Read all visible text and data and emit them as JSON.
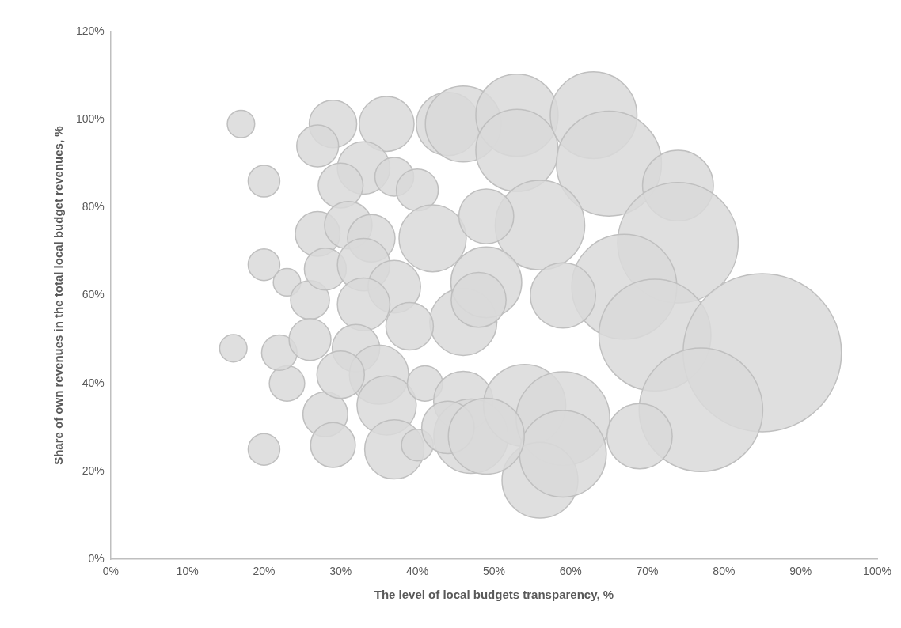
{
  "chart_data": {
    "type": "bubble",
    "xlabel": "The level of local budgets transparency, %",
    "ylabel": "Share of own revenues in the total local budget revenues, %",
    "xlim": [
      0,
      100
    ],
    "ylim": [
      0,
      120
    ],
    "xticks": [
      {
        "value": 0,
        "label": "0%"
      },
      {
        "value": 10,
        "label": "10%"
      },
      {
        "value": 20,
        "label": "20%"
      },
      {
        "value": 30,
        "label": "30%"
      },
      {
        "value": 40,
        "label": "40%"
      },
      {
        "value": 50,
        "label": "50%"
      },
      {
        "value": 60,
        "label": "60%"
      },
      {
        "value": 70,
        "label": "70%"
      },
      {
        "value": 80,
        "label": "80%"
      },
      {
        "value": 90,
        "label": "90%"
      },
      {
        "value": 100,
        "label": "100%"
      }
    ],
    "yticks": [
      {
        "value": 0,
        "label": "0%"
      },
      {
        "value": 20,
        "label": "20%"
      },
      {
        "value": 40,
        "label": "40%"
      },
      {
        "value": 60,
        "label": "60%"
      },
      {
        "value": 80,
        "label": "80%"
      },
      {
        "value": 100,
        "label": "100%"
      },
      {
        "value": 120,
        "label": "120%"
      }
    ],
    "grid": false,
    "legend": false,
    "series": [
      {
        "color": "#d9d9d9",
        "x": [
          17,
          20,
          20,
          16,
          20,
          23,
          22,
          23,
          29,
          27,
          36,
          44,
          33,
          37,
          40,
          30,
          42,
          27,
          31,
          34,
          26,
          28,
          33,
          37,
          33,
          46,
          26,
          28,
          29,
          32,
          35,
          30,
          36,
          37,
          40,
          41,
          46,
          47,
          44,
          46,
          53,
          53,
          63,
          65,
          56,
          74,
          74,
          49,
          67,
          71,
          85,
          49,
          59,
          48,
          54,
          59,
          77,
          56,
          59,
          49,
          69,
          39
        ],
        "values": [
          99,
          86,
          67,
          48,
          25,
          40,
          47,
          63,
          99,
          94,
          99,
          99,
          89,
          87,
          84,
          85,
          73,
          74,
          76,
          73,
          59,
          66,
          67,
          62,
          58,
          54,
          50,
          33,
          26,
          48,
          42,
          42,
          35,
          25,
          26,
          40,
          36,
          28,
          30,
          99,
          101,
          93,
          101,
          90,
          76,
          85,
          72,
          78,
          62,
          51,
          47,
          63,
          60,
          59,
          35,
          32,
          34,
          18,
          24,
          28,
          28,
          53
        ],
        "sizes": [
          0.03,
          0.04,
          0.04,
          0.03,
          0.04,
          0.05,
          0.05,
          0.03,
          0.09,
          0.07,
          0.12,
          0.16,
          0.11,
          0.06,
          0.07,
          0.08,
          0.18,
          0.08,
          0.09,
          0.09,
          0.06,
          0.07,
          0.11,
          0.11,
          0.11,
          0.18,
          0.07,
          0.08,
          0.08,
          0.09,
          0.14,
          0.09,
          0.14,
          0.14,
          0.04,
          0.05,
          0.14,
          0.22,
          0.11,
          0.23,
          0.27,
          0.27,
          0.3,
          0.44,
          0.32,
          0.2,
          0.58,
          0.12,
          0.44,
          0.5,
          1,
          0.2,
          0.17,
          0.12,
          0.27,
          0.35,
          0.61,
          0.23,
          0.3,
          0.23,
          0.17,
          0.09
        ]
      }
    ]
  }
}
